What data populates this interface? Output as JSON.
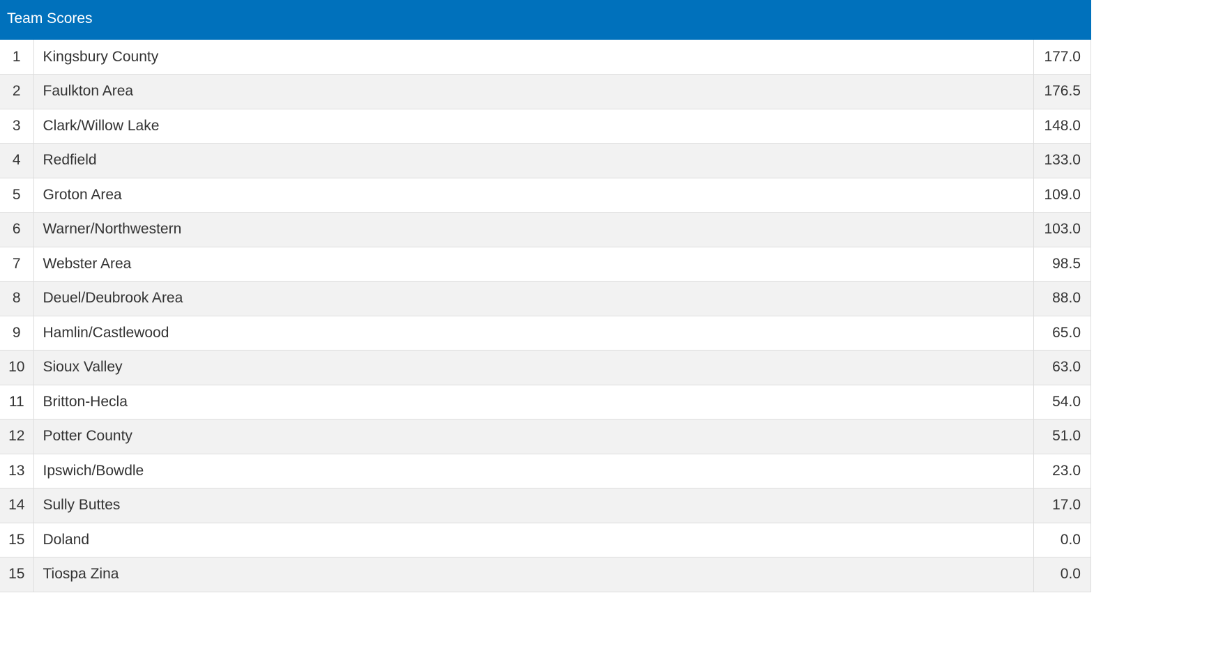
{
  "header": {
    "title": "Team Scores"
  },
  "table": {
    "rows": [
      [
        "1",
        "Kingsbury County",
        "177.0"
      ],
      [
        "2",
        "Faulkton Area",
        "176.5"
      ],
      [
        "3",
        "Clark/Willow Lake",
        "148.0"
      ],
      [
        "4",
        "Redfield",
        "133.0"
      ],
      [
        "5",
        "Groton Area",
        "109.0"
      ],
      [
        "6",
        "Warner/Northwestern",
        "103.0"
      ],
      [
        "7",
        "Webster Area",
        "98.5"
      ],
      [
        "8",
        "Deuel/Deubrook Area",
        "88.0"
      ],
      [
        "9",
        "Hamlin/Castlewood",
        "65.0"
      ],
      [
        "10",
        "Sioux Valley",
        "63.0"
      ],
      [
        "11",
        "Britton-Hecla",
        "54.0"
      ],
      [
        "12",
        "Potter County",
        "51.0"
      ],
      [
        "13",
        "Ipswich/Bowdle",
        "23.0"
      ],
      [
        "14",
        "Sully Buttes",
        "17.0"
      ],
      [
        "15",
        "Doland",
        "0.0"
      ],
      [
        "15",
        "Tiospa Zina",
        "0.0"
      ]
    ]
  }
}
